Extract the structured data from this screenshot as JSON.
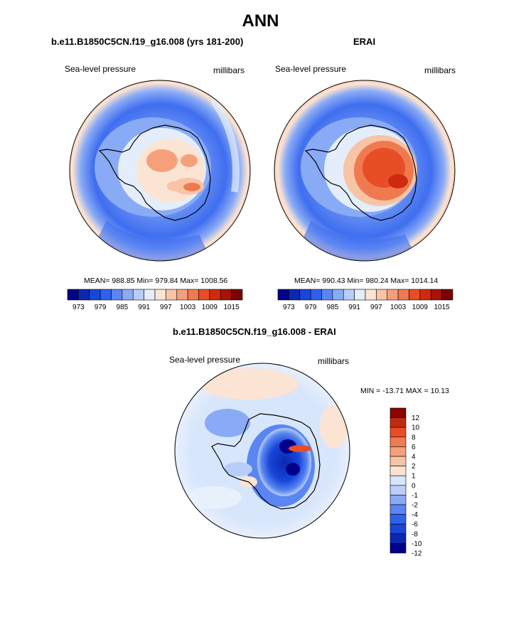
{
  "page": {
    "title": "ANN"
  },
  "panels": [
    {
      "id": "model",
      "title": "b.e11.B1850C5CN.f19_g16.008 (yrs 181-200)",
      "variable": "Sea-level pressure",
      "units": "millibars",
      "stats": "MEAN= 988.85  Min= 979.84  Max= 1008.56"
    },
    {
      "id": "obs",
      "title": "ERAI",
      "variable": "Sea-level pressure",
      "units": "millibars",
      "stats": "MEAN= 990.43  Min= 980.24  Max= 1014.14"
    },
    {
      "id": "diff",
      "title": "b.e11.B1850C5CN.f19_g16.008 - ERAI",
      "variable": "Sea-level pressure",
      "units": "millibars",
      "stats": "MIN = -13.71 MAX =  10.13"
    }
  ],
  "colors": {
    "abs_scale": [
      "#00008a",
      "#0a28b0",
      "#1846d8",
      "#2f62ec",
      "#5b86f2",
      "#89aaf5",
      "#b8cdf8",
      "#e4eefb",
      "#fce4d4",
      "#f8c4a6",
      "#f5a07a",
      "#f07a50",
      "#e84e26",
      "#cf2a10",
      "#a81206",
      "#7a0200"
    ],
    "diff_scale": [
      "#00008a",
      "#0a28b0",
      "#1846d8",
      "#2f62ec",
      "#5b86f2",
      "#89aaf5",
      "#b8cdf8",
      "#d8e6fb",
      "#fce4d4",
      "#f8c4a6",
      "#f5a07a",
      "#f07a50",
      "#e84e26",
      "#c22a10",
      "#8a0400"
    ],
    "continent_outline": "#000000"
  },
  "chart_data": [
    {
      "type": "heatmap",
      "projection": "south-polar-stereographic",
      "title": "b.e11.B1850C5CN.f19_g16.008 (yrs 181-200)",
      "variable": "Sea-level pressure",
      "units": "millibars",
      "mean": 988.85,
      "min": 979.84,
      "max": 1008.56,
      "contour_levels": [
        973,
        976,
        979,
        982,
        985,
        988,
        991,
        994,
        997,
        1000,
        1003,
        1006,
        1009,
        1012,
        1015
      ],
      "colorbar_tick_labels": [
        "973",
        "979",
        "985",
        "991",
        "997",
        "1003",
        "1009",
        "1015"
      ]
    },
    {
      "type": "heatmap",
      "projection": "south-polar-stereographic",
      "title": "ERAI",
      "variable": "Sea-level pressure",
      "units": "millibars",
      "mean": 990.43,
      "min": 980.24,
      "max": 1014.14,
      "contour_levels": [
        973,
        976,
        979,
        982,
        985,
        988,
        991,
        994,
        997,
        1000,
        1003,
        1006,
        1009,
        1012,
        1015
      ],
      "colorbar_tick_labels": [
        "973",
        "979",
        "985",
        "991",
        "997",
        "1003",
        "1009",
        "1015"
      ]
    },
    {
      "type": "heatmap",
      "projection": "south-polar-stereographic",
      "title": "b.e11.B1850C5CN.f19_g16.008 - ERAI",
      "variable": "Sea-level pressure",
      "units": "millibars",
      "min": -13.71,
      "max": 10.13,
      "contour_levels": [
        -12,
        -10,
        -8,
        -6,
        -4,
        -2,
        -1,
        0,
        1,
        2,
        4,
        6,
        8,
        10,
        12
      ],
      "colorbar_tick_labels": [
        "-12",
        "-10",
        "-8",
        "-6",
        "-4",
        "-2",
        "-1",
        "0",
        "1",
        "2",
        "4",
        "6",
        "8",
        "10",
        "12"
      ]
    }
  ]
}
